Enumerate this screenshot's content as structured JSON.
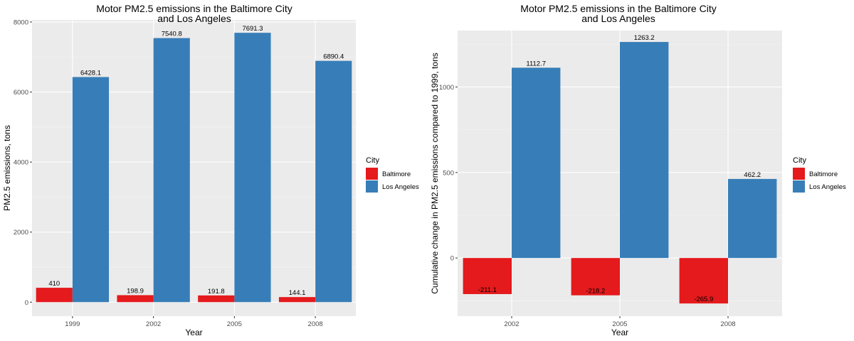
{
  "chart_data": [
    {
      "type": "bar",
      "title": [
        "Motor PM2.5 emissions in the Baltimore City",
        "and Los Angeles"
      ],
      "xlabel": "Year",
      "ylabel": "PM2.5 emissions, tons",
      "categories": [
        "1999",
        "2002",
        "2005",
        "2008"
      ],
      "series": [
        {
          "name": "Baltimore",
          "values": [
            410,
            198.9,
            191.8,
            144.1
          ],
          "labels": [
            "410",
            "198.9",
            "191.8",
            "144.1"
          ]
        },
        {
          "name": "Los Angeles",
          "values": [
            6428.1,
            7540.8,
            7691.3,
            6890.4
          ],
          "labels": [
            "6428.1",
            "7540.8",
            "7691.3",
            "6890.4"
          ]
        }
      ],
      "ylim": [
        -400,
        8060
      ],
      "yticks": [
        0,
        2000,
        4000,
        6000,
        8000
      ],
      "legend": {
        "title": "City",
        "position": "right"
      },
      "grid": true
    },
    {
      "type": "bar",
      "title": [
        "Motor PM2.5 emissions in the Baltimore City",
        "and Los Angeles"
      ],
      "xlabel": "Year",
      "ylabel": "Cumulative change in PM2.5 emissions compared to 1999, tons",
      "categories": [
        "2002",
        "2005",
        "2008"
      ],
      "series": [
        {
          "name": "Baltimore",
          "values": [
            -211.1,
            -218.2,
            -265.9
          ],
          "labels": [
            "-211.1",
            "-218.2",
            "-265.9"
          ]
        },
        {
          "name": "Los Angeles",
          "values": [
            1112.7,
            1263.2,
            462.2
          ],
          "labels": [
            "1112.7",
            "1263.2",
            "462.2"
          ]
        }
      ],
      "ylim": [
        -340,
        1330
      ],
      "yticks": [
        0,
        500,
        1000
      ],
      "legend": {
        "title": "City",
        "position": "right"
      },
      "grid": true
    }
  ],
  "colors": {
    "Baltimore": "#e41a1c",
    "Los Angeles": "#377eb8",
    "panel": "#ebebeb",
    "grid_major": "#ffffff",
    "grid_minor": "#f5f5f5"
  }
}
